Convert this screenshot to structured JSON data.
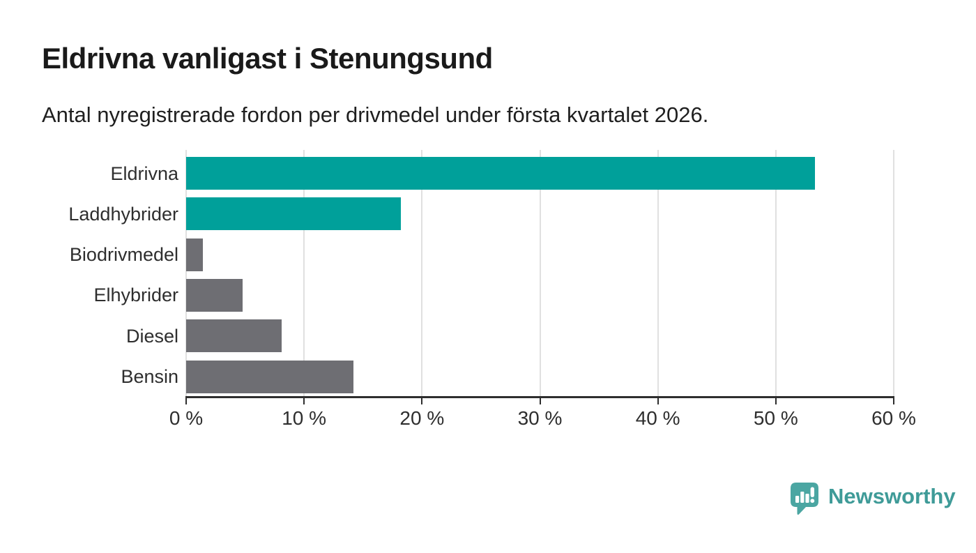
{
  "header": {
    "title": "Eldrivna vanligast i Stenungsund",
    "subtitle": "Antal nyregistrerade fordon per drivmedel under första kvartalet 2026."
  },
  "chart_data": {
    "type": "bar",
    "orientation": "horizontal",
    "title": "Eldrivna vanligast i Stenungsund",
    "subtitle": "Antal nyregistrerade fordon per drivmedel under första kvartalet 2026.",
    "categories": [
      "Eldrivna",
      "Laddhybrider",
      "Biodrivmedel",
      "Elhybrider",
      "Diesel",
      "Bensin"
    ],
    "values": [
      53.3,
      18.2,
      1.4,
      4.8,
      8.1,
      14.2
    ],
    "unit": "%",
    "bar_colors": [
      "#00a09a",
      "#00a09a",
      "#6e6e73",
      "#6e6e73",
      "#6e6e73",
      "#6e6e73"
    ],
    "highlight_color": "#00a09a",
    "muted_color": "#6e6e73",
    "xlim": [
      0,
      60
    ],
    "x_tick_values": [
      0,
      10,
      20,
      30,
      40,
      50,
      60
    ],
    "x_tick_labels": [
      "0 %",
      "10 %",
      "20 %",
      "30 %",
      "40 %",
      "50 %",
      "60 %"
    ],
    "ylabel": "",
    "xlabel": "",
    "grid": "vertical-light-gray",
    "legend": false,
    "gridline_color": "#e0e0e0",
    "axis_color": "#2e2e2e"
  },
  "branding": {
    "logo_text": "Newsworthy",
    "logo_text_color": "#3f9b98",
    "logo_icon": "speech-bubble-with-bar-chart-and-exclamation",
    "logo_icon_color": "#4ba6a2"
  }
}
